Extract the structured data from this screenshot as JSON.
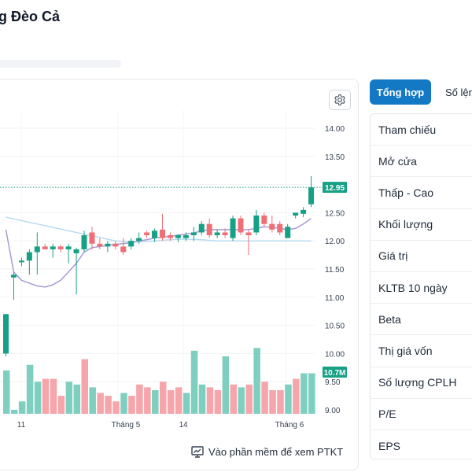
{
  "page": {
    "title": "g Đèo Cả"
  },
  "chart": {
    "settings_icon": "gear-icon",
    "footer_link": "Vào phần mềm để xem PTKT",
    "footer_icon": "monitor-chart-icon",
    "price_label": "12.95",
    "volume_label": "10.7M",
    "price_axis": [
      "14.00",
      "13.50",
      "13.00",
      "12.50",
      "12.00",
      "11.50",
      "11.00",
      "10.50",
      "10.00",
      "9.50",
      "9.00"
    ],
    "x_labels": [
      "11",
      "Tháng 5",
      "14",
      "Tháng 6"
    ],
    "colors": {
      "up": "#16a085",
      "down": "#ef6f76",
      "up_vol": "#7fcfc0",
      "down_vol": "#f6a5ab",
      "ma_long": "#b7dcf0",
      "ma_short": "#a99ad7",
      "ref_line": "#16a085"
    }
  },
  "chart_data": {
    "type": "candlestick",
    "ylim": [
      9.0,
      14.0
    ],
    "last_price": 12.95,
    "last_volume": "10.7M",
    "candles": [
      {
        "o": 10.0,
        "h": 10.7,
        "l": 9.95,
        "c": 10.7
      },
      {
        "o": 11.35,
        "h": 11.45,
        "l": 10.95,
        "c": 11.4
      },
      {
        "o": 11.62,
        "h": 11.7,
        "l": 11.55,
        "c": 11.65
      },
      {
        "o": 11.65,
        "h": 11.85,
        "l": 11.4,
        "c": 11.8
      },
      {
        "o": 11.8,
        "h": 12.15,
        "l": 11.4,
        "c": 11.9
      },
      {
        "o": 11.9,
        "h": 11.95,
        "l": 11.85,
        "c": 11.85
      },
      {
        "o": 11.85,
        "h": 11.95,
        "l": 11.7,
        "c": 11.9
      },
      {
        "o": 11.9,
        "h": 11.93,
        "l": 11.8,
        "c": 11.85
      },
      {
        "o": 11.85,
        "h": 11.95,
        "l": 11.6,
        "c": 11.9
      },
      {
        "o": 11.78,
        "h": 11.88,
        "l": 11.05,
        "c": 11.85
      },
      {
        "o": 11.85,
        "h": 12.18,
        "l": 11.8,
        "c": 12.1
      },
      {
        "o": 12.15,
        "h": 12.25,
        "l": 11.85,
        "c": 11.95
      },
      {
        "o": 11.95,
        "h": 12.05,
        "l": 11.85,
        "c": 11.9
      },
      {
        "o": 11.9,
        "h": 12.0,
        "l": 11.8,
        "c": 11.95
      },
      {
        "o": 11.95,
        "h": 12.0,
        "l": 11.85,
        "c": 11.9
      },
      {
        "o": 11.9,
        "h": 12.05,
        "l": 11.75,
        "c": 11.8
      },
      {
        "o": 11.9,
        "h": 12.05,
        "l": 11.85,
        "c": 12.0
      },
      {
        "o": 12.0,
        "h": 12.15,
        "l": 11.95,
        "c": 12.05
      },
      {
        "o": 12.15,
        "h": 12.18,
        "l": 12.05,
        "c": 12.1
      },
      {
        "o": 12.05,
        "h": 12.22,
        "l": 11.98,
        "c": 12.18
      },
      {
        "o": 12.2,
        "h": 12.48,
        "l": 12.0,
        "c": 12.05
      },
      {
        "o": 12.1,
        "h": 12.15,
        "l": 12.0,
        "c": 12.05
      },
      {
        "o": 12.05,
        "h": 12.12,
        "l": 11.98,
        "c": 12.1
      },
      {
        "o": 12.05,
        "h": 12.15,
        "l": 12.0,
        "c": 12.1
      },
      {
        "o": 12.1,
        "h": 12.25,
        "l": 12.0,
        "c": 12.15
      },
      {
        "o": 12.15,
        "h": 12.35,
        "l": 12.1,
        "c": 12.3
      },
      {
        "o": 12.3,
        "h": 12.4,
        "l": 12.05,
        "c": 12.1
      },
      {
        "o": 12.1,
        "h": 12.2,
        "l": 12.05,
        "c": 12.15
      },
      {
        "o": 12.15,
        "h": 12.22,
        "l": 12.05,
        "c": 12.1
      },
      {
        "o": 12.05,
        "h": 12.45,
        "l": 12.0,
        "c": 12.4
      },
      {
        "o": 12.4,
        "h": 12.45,
        "l": 12.1,
        "c": 12.15
      },
      {
        "o": 12.15,
        "h": 12.2,
        "l": 11.75,
        "c": 12.1
      },
      {
        "o": 12.15,
        "h": 12.55,
        "l": 12.1,
        "c": 12.45
      },
      {
        "o": 12.45,
        "h": 12.5,
        "l": 12.25,
        "c": 12.3
      },
      {
        "o": 12.3,
        "h": 12.45,
        "l": 12.15,
        "c": 12.2
      },
      {
        "o": 12.3,
        "h": 12.35,
        "l": 12.1,
        "c": 12.15
      },
      {
        "o": 12.05,
        "h": 12.3,
        "l": 12.05,
        "c": 12.25
      },
      {
        "o": 12.45,
        "h": 12.5,
        "l": 12.4,
        "c": 12.5
      },
      {
        "o": 12.48,
        "h": 12.6,
        "l": 12.42,
        "c": 12.55
      },
      {
        "o": 12.65,
        "h": 13.15,
        "l": 12.6,
        "c": 12.95
      }
    ],
    "volumes": [
      {
        "v": 9.7,
        "up": true
      },
      {
        "v": 9.0,
        "up": true
      },
      {
        "v": 9.15,
        "up": true
      },
      {
        "v": 9.8,
        "up": true
      },
      {
        "v": 9.5,
        "up": true
      },
      {
        "v": 9.55,
        "up": false
      },
      {
        "v": 9.55,
        "up": false
      },
      {
        "v": 9.25,
        "up": false
      },
      {
        "v": 9.5,
        "up": true
      },
      {
        "v": 9.45,
        "up": true
      },
      {
        "v": 9.9,
        "up": false
      },
      {
        "v": 9.4,
        "up": true
      },
      {
        "v": 9.3,
        "up": false
      },
      {
        "v": 9.25,
        "up": false
      },
      {
        "v": 9.15,
        "up": false
      },
      {
        "v": 9.3,
        "up": true
      },
      {
        "v": 9.25,
        "up": false
      },
      {
        "v": 9.45,
        "up": false
      },
      {
        "v": 9.4,
        "up": false
      },
      {
        "v": 9.35,
        "up": true
      },
      {
        "v": 9.5,
        "up": false
      },
      {
        "v": 9.35,
        "up": false
      },
      {
        "v": 9.4,
        "up": false
      },
      {
        "v": 9.3,
        "up": true
      },
      {
        "v": 10.05,
        "up": true
      },
      {
        "v": 9.45,
        "up": true
      },
      {
        "v": 9.4,
        "up": false
      },
      {
        "v": 9.35,
        "up": false
      },
      {
        "v": 9.95,
        "up": true
      },
      {
        "v": 9.45,
        "up": false
      },
      {
        "v": 9.4,
        "up": true
      },
      {
        "v": 9.45,
        "up": false
      },
      {
        "v": 10.1,
        "up": true
      },
      {
        "v": 9.5,
        "up": false
      },
      {
        "v": 9.35,
        "up": false
      },
      {
        "v": 9.35,
        "up": false
      },
      {
        "v": 9.45,
        "up": true
      },
      {
        "v": 9.55,
        "up": false
      },
      {
        "v": 9.65,
        "up": true
      },
      {
        "v": 9.65,
        "up": true
      }
    ],
    "ma_long": [
      12.42,
      12.39,
      12.36,
      12.33,
      12.3,
      12.27,
      12.24,
      12.21,
      12.18,
      12.15,
      12.12,
      12.09,
      12.06,
      12.03,
      12.0,
      11.99,
      11.98,
      11.98,
      11.99,
      12.0,
      12.01,
      12.02,
      12.03,
      12.03,
      12.03,
      12.02,
      12.01,
      12.0,
      12.0,
      12.0,
      12.0,
      12.0,
      12.0,
      12.0,
      12.0,
      12.0,
      12.0,
      12.0,
      12.0,
      12.0
    ],
    "ma_short": [
      12.2,
      11.45,
      11.3,
      11.25,
      11.2,
      11.18,
      11.22,
      11.3,
      11.45,
      11.6,
      11.8,
      11.88,
      11.9,
      11.92,
      11.94,
      11.95,
      11.97,
      12.0,
      12.02,
      12.05,
      12.07,
      12.08,
      12.1,
      12.12,
      12.14,
      12.18,
      12.2,
      12.2,
      12.2,
      12.2,
      12.2,
      12.2,
      12.22,
      12.25,
      12.24,
      12.22,
      12.2,
      12.22,
      12.3,
      12.4
    ]
  },
  "tabs": [
    {
      "label": "Tổng hợp",
      "active": true
    },
    {
      "label": "Số lệnh",
      "active": false
    }
  ],
  "stats": [
    {
      "label": "Tham chiếu"
    },
    {
      "label": "Mở cửa"
    },
    {
      "label": "Thấp - Cao"
    },
    {
      "label": "Khối lượng"
    },
    {
      "label": "Giá trị"
    },
    {
      "label": "KLTB 10 ngày"
    },
    {
      "label": "Beta"
    },
    {
      "label": "Thị giá vốn"
    },
    {
      "label": "Số lượng CPLH"
    },
    {
      "label": "P/E"
    },
    {
      "label": "EPS"
    }
  ]
}
